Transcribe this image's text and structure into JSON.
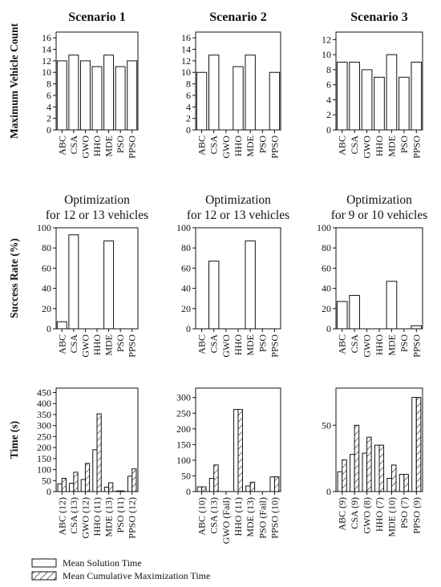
{
  "colors": {
    "bar_fill": "#ffffff",
    "bar_stroke": "#111111",
    "hatch": "#111111"
  },
  "chart_data": [
    {
      "type": "bar",
      "row": 1,
      "col": 1,
      "title": "Scenario 1",
      "ylabel": "Maximum Vehicle Count",
      "ylim": [
        0,
        17
      ],
      "yticks": [
        0,
        2,
        4,
        6,
        8,
        10,
        12,
        14,
        16
      ],
      "categories": [
        "ABC",
        "CSA",
        "GWO",
        "HHO",
        "MDE",
        "PSO",
        "PPSO"
      ],
      "values": [
        12,
        13,
        12,
        11,
        13,
        11,
        12
      ]
    },
    {
      "type": "bar",
      "row": 1,
      "col": 2,
      "title": "Scenario 2",
      "ylim": [
        0,
        17
      ],
      "yticks": [
        0,
        2,
        4,
        6,
        8,
        10,
        12,
        14,
        16
      ],
      "categories": [
        "ABC",
        "CSA",
        "GWO",
        "HHO",
        "MDE",
        "PSO",
        "PPSO"
      ],
      "values": [
        10,
        13,
        null,
        11,
        13,
        null,
        10
      ]
    },
    {
      "type": "bar",
      "row": 1,
      "col": 3,
      "title": "Scenario 3",
      "ylim": [
        0,
        13
      ],
      "yticks": [
        0,
        2,
        4,
        6,
        8,
        10,
        12
      ],
      "categories": [
        "ABC",
        "CSA",
        "GWO",
        "HHO",
        "MDE",
        "PSO",
        "PPSO"
      ],
      "values": [
        9,
        9,
        8,
        7,
        10,
        7,
        9
      ]
    },
    {
      "type": "bar",
      "row": 2,
      "col": 1,
      "title": [
        "Optimization",
        "for 12 or 13 vehicles"
      ],
      "ylabel": "Success Rate (%)",
      "ylim": [
        0,
        100
      ],
      "yticks": [
        0,
        20,
        40,
        60,
        80,
        100
      ],
      "categories": [
        "ABC",
        "CSA",
        "GWO",
        "HHO",
        "MDE",
        "PSO",
        "PPSO"
      ],
      "values": [
        7,
        93,
        0,
        0,
        87,
        0,
        0
      ]
    },
    {
      "type": "bar",
      "row": 2,
      "col": 2,
      "title": [
        "Optimization",
        "for 12 or 13 vehicles"
      ],
      "ylim": [
        0,
        100
      ],
      "yticks": [
        0,
        20,
        40,
        60,
        80,
        100
      ],
      "categories": [
        "ABC",
        "CSA",
        "GWO",
        "HHO",
        "MDE",
        "PSO",
        "PPSO"
      ],
      "values": [
        0,
        67,
        0,
        0,
        87,
        0,
        0
      ]
    },
    {
      "type": "bar",
      "row": 2,
      "col": 3,
      "title": [
        "Optimization",
        "for 9 or 10 vehicles"
      ],
      "ylim": [
        0,
        100
      ],
      "yticks": [
        0,
        20,
        40,
        60,
        80,
        100
      ],
      "categories": [
        "ABC",
        "CSA",
        "GWO",
        "HHO",
        "MDE",
        "PSO",
        "PPSO"
      ],
      "values": [
        27,
        33,
        0,
        0,
        47,
        0,
        3
      ]
    },
    {
      "type": "bar",
      "row": 3,
      "col": 1,
      "ylabel": "Time (s)",
      "ylim": [
        0,
        470
      ],
      "yticks": [
        0,
        50,
        100,
        150,
        200,
        250,
        300,
        350,
        400,
        450
      ],
      "categories": [
        "ABC (12)",
        "CSA (13)",
        "GWO (12)",
        "HHO (11)",
        "MDE (13)",
        "PSO (11)",
        "PPSO (12)"
      ],
      "series": [
        {
          "name": "Mean Solution Time",
          "values": [
            35,
            38,
            55,
            190,
            20,
            3,
            70
          ]
        },
        {
          "name": "Mean Cumulative Maximization Time",
          "values": [
            60,
            88,
            128,
            353,
            40,
            3,
            103
          ]
        }
      ]
    },
    {
      "type": "bar",
      "row": 3,
      "col": 2,
      "ylim": [
        0,
        330
      ],
      "yticks": [
        0,
        50,
        100,
        150,
        200,
        250,
        300
      ],
      "categories": [
        "ABC (10)",
        "CSA (13)",
        "GWO (Fail)",
        "HHO (11)",
        "MDE (13)",
        "PSO (Fail)",
        "PPSO (10)"
      ],
      "series": [
        {
          "name": "Mean Solution Time",
          "values": [
            15,
            42,
            null,
            262,
            18,
            null,
            47
          ]
        },
        {
          "name": "Mean Cumulative Maximization Time",
          "values": [
            15,
            85,
            null,
            262,
            30,
            null,
            47
          ]
        }
      ]
    },
    {
      "type": "bar",
      "row": 3,
      "col": 3,
      "ylim": [
        0,
        78
      ],
      "yticks": [
        0,
        50
      ],
      "categories": [
        "ABC (9)",
        "CSA (9)",
        "GWO (8)",
        "HHO (7)",
        "MDE (10)",
        "PSO (7)",
        "PPSO (9)"
      ],
      "series": [
        {
          "name": "Mean Solution Time",
          "values": [
            15,
            28,
            29,
            35,
            10,
            13,
            71
          ]
        },
        {
          "name": "Mean Cumulative Maximization Time",
          "values": [
            24,
            50,
            41,
            35,
            20,
            13,
            71
          ]
        }
      ]
    }
  ],
  "legend": {
    "entries": [
      "Mean Solution Time",
      "Mean Cumulative Maximization Time"
    ]
  }
}
